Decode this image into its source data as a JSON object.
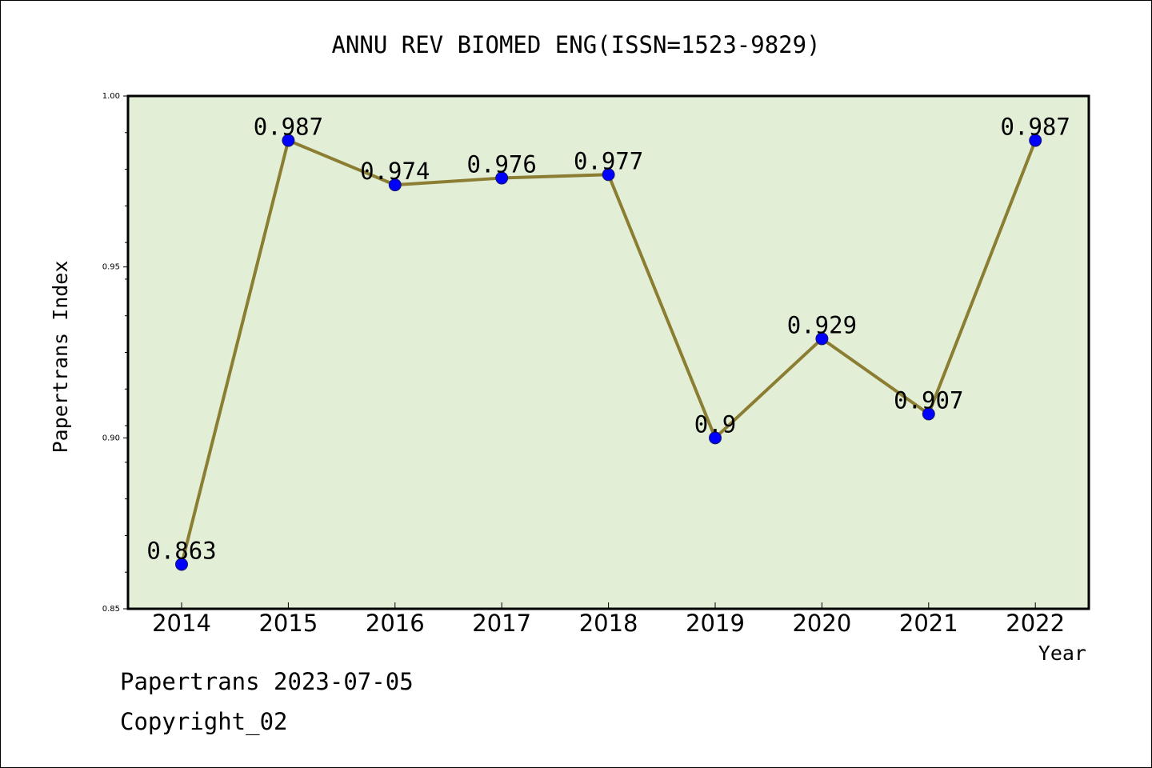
{
  "chart_data": {
    "type": "line",
    "title": "ANNU REV BIOMED ENG(ISSN=1523-9829)",
    "xlabel": "Year",
    "ylabel": "Papertrans Index",
    "categories": [
      "2014",
      "2015",
      "2016",
      "2017",
      "2018",
      "2019",
      "2020",
      "2021",
      "2022"
    ],
    "values": [
      0.863,
      0.987,
      0.974,
      0.976,
      0.977,
      0.9,
      0.929,
      0.907,
      0.987
    ],
    "data_labels": [
      "0.863",
      "0.987",
      "0.974",
      "0.976",
      "0.977",
      "0.9",
      "0.929",
      "0.907",
      "0.987"
    ],
    "ylim": [
      0.85,
      1.0
    ],
    "yticks": [
      "0.85",
      "0.90",
      "0.95",
      "1.00"
    ],
    "grid": false,
    "colors": {
      "plot_background": "#e2efd6",
      "line": "#8b7d32",
      "marker": "#0000ff"
    }
  },
  "footer": {
    "line1": "Papertrans 2023-07-05",
    "line2": "Copyright_02"
  }
}
